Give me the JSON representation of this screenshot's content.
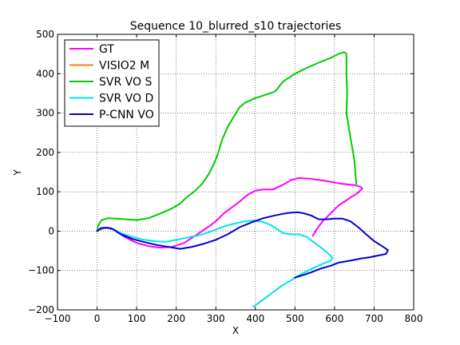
{
  "chart_data": {
    "type": "line",
    "title": "Sequence 10_blurred_s10 trajectories",
    "xlabel": "X",
    "ylabel": "Y",
    "xlim": [
      -100,
      800
    ],
    "ylim": [
      -200,
      500
    ],
    "xticks": [
      -100,
      0,
      100,
      200,
      300,
      400,
      500,
      600,
      700,
      800
    ],
    "yticks": [
      -200,
      -100,
      0,
      100,
      200,
      300,
      400,
      500
    ],
    "xtick_labels": [
      "−100",
      "0",
      "100",
      "200",
      "300",
      "400",
      "500",
      "600",
      "700",
      "800"
    ],
    "ytick_labels": [
      "−200",
      "−100",
      "0",
      "100",
      "200",
      "300",
      "400",
      "500"
    ],
    "grid": true,
    "legend_position": "top-left",
    "series": [
      {
        "name": "GT",
        "color": "#ff00ff",
        "points": [
          [
            0,
            0
          ],
          [
            10,
            5
          ],
          [
            20,
            8
          ],
          [
            35,
            8
          ],
          [
            50,
            0
          ],
          [
            70,
            -15
          ],
          [
            100,
            -30
          ],
          [
            130,
            -38
          ],
          [
            160,
            -42
          ],
          [
            190,
            -40
          ],
          [
            220,
            -30
          ],
          [
            250,
            -10
          ],
          [
            280,
            10
          ],
          [
            300,
            25
          ],
          [
            320,
            45
          ],
          [
            340,
            60
          ],
          [
            360,
            75
          ],
          [
            380,
            92
          ],
          [
            400,
            103
          ],
          [
            420,
            106
          ],
          [
            445,
            106
          ],
          [
            470,
            118
          ],
          [
            490,
            130
          ],
          [
            510,
            135
          ],
          [
            540,
            133
          ],
          [
            580,
            127
          ],
          [
            620,
            120
          ],
          [
            650,
            117
          ],
          [
            665,
            113
          ],
          [
            670,
            108
          ],
          [
            660,
            98
          ],
          [
            640,
            85
          ],
          [
            610,
            65
          ],
          [
            590,
            45
          ],
          [
            570,
            25
          ],
          [
            555,
            5
          ],
          [
            545,
            -12
          ]
        ]
      },
      {
        "name": "VISIO2 M",
        "color": "#ff7f0e",
        "points": [
          [
            0,
            0
          ],
          [
            2,
            1
          ],
          [
            4,
            2
          ]
        ]
      },
      {
        "name": "SVR VO S",
        "color": "#00cc00",
        "points": [
          [
            0,
            0
          ],
          [
            3,
            15
          ],
          [
            12,
            28
          ],
          [
            28,
            33
          ],
          [
            60,
            31
          ],
          [
            100,
            28
          ],
          [
            130,
            33
          ],
          [
            160,
            45
          ],
          [
            190,
            58
          ],
          [
            210,
            70
          ],
          [
            225,
            85
          ],
          [
            245,
            100
          ],
          [
            265,
            120
          ],
          [
            282,
            145
          ],
          [
            295,
            170
          ],
          [
            305,
            195
          ],
          [
            315,
            230
          ],
          [
            330,
            265
          ],
          [
            345,
            290
          ],
          [
            360,
            315
          ],
          [
            375,
            327
          ],
          [
            400,
            338
          ],
          [
            430,
            348
          ],
          [
            450,
            355
          ],
          [
            470,
            380
          ],
          [
            500,
            400
          ],
          [
            530,
            415
          ],
          [
            560,
            428
          ],
          [
            590,
            440
          ],
          [
            610,
            450
          ],
          [
            625,
            455
          ],
          [
            630,
            450
          ],
          [
            630,
            400
          ],
          [
            632,
            350
          ],
          [
            630,
            300
          ],
          [
            640,
            240
          ],
          [
            650,
            180
          ],
          [
            655,
            120
          ]
        ]
      },
      {
        "name": "SVR VO D",
        "color": "#00e5e5",
        "points": [
          [
            0,
            0
          ],
          [
            10,
            7
          ],
          [
            25,
            9
          ],
          [
            40,
            5
          ],
          [
            60,
            -5
          ],
          [
            90,
            -15
          ],
          [
            120,
            -22
          ],
          [
            150,
            -26
          ],
          [
            175,
            -27
          ],
          [
            200,
            -22
          ],
          [
            230,
            -16
          ],
          [
            260,
            -10
          ],
          [
            290,
            0
          ],
          [
            320,
            12
          ],
          [
            350,
            20
          ],
          [
            375,
            25
          ],
          [
            395,
            27
          ],
          [
            420,
            23
          ],
          [
            440,
            15
          ],
          [
            455,
            5
          ],
          [
            470,
            -5
          ],
          [
            490,
            -8
          ],
          [
            510,
            -8
          ],
          [
            530,
            -15
          ],
          [
            550,
            -30
          ],
          [
            570,
            -45
          ],
          [
            585,
            -58
          ],
          [
            595,
            -68
          ],
          [
            590,
            -75
          ],
          [
            570,
            -83
          ],
          [
            550,
            -92
          ],
          [
            530,
            -102
          ],
          [
            510,
            -112
          ],
          [
            490,
            -125
          ],
          [
            465,
            -140
          ],
          [
            445,
            -155
          ],
          [
            425,
            -170
          ],
          [
            405,
            -185
          ],
          [
            395,
            -192
          ]
        ]
      },
      {
        "name": "P-CNN VO",
        "color": "#0000cc",
        "points": [
          [
            0,
            0
          ],
          [
            10,
            8
          ],
          [
            25,
            9
          ],
          [
            40,
            5
          ],
          [
            60,
            -8
          ],
          [
            90,
            -20
          ],
          [
            120,
            -28
          ],
          [
            150,
            -35
          ],
          [
            180,
            -40
          ],
          [
            210,
            -45
          ],
          [
            240,
            -40
          ],
          [
            270,
            -32
          ],
          [
            300,
            -22
          ],
          [
            330,
            -8
          ],
          [
            360,
            10
          ],
          [
            390,
            22
          ],
          [
            420,
            33
          ],
          [
            450,
            40
          ],
          [
            480,
            46
          ],
          [
            505,
            48
          ],
          [
            520,
            46
          ],
          [
            540,
            40
          ],
          [
            560,
            30
          ],
          [
            580,
            30
          ],
          [
            600,
            32
          ],
          [
            620,
            32
          ],
          [
            640,
            25
          ],
          [
            660,
            10
          ],
          [
            680,
            -8
          ],
          [
            700,
            -25
          ],
          [
            720,
            -38
          ],
          [
            735,
            -48
          ],
          [
            730,
            -58
          ],
          [
            710,
            -62
          ],
          [
            690,
            -66
          ],
          [
            665,
            -70
          ],
          [
            640,
            -75
          ],
          [
            610,
            -80
          ],
          [
            590,
            -88
          ],
          [
            565,
            -95
          ],
          [
            540,
            -105
          ],
          [
            520,
            -112
          ],
          [
            500,
            -118
          ]
        ]
      }
    ]
  }
}
